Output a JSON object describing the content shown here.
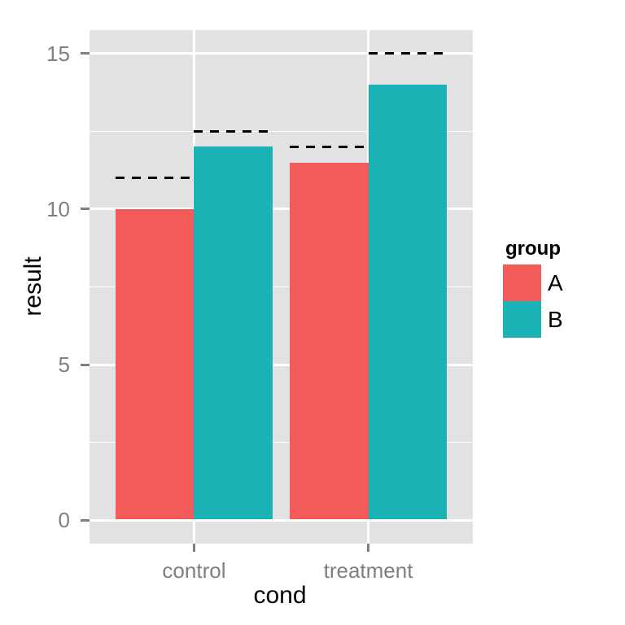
{
  "chart_data": {
    "type": "bar",
    "bar_layout": "dodged",
    "title": "",
    "xlabel": "cond",
    "ylabel": "result",
    "categories": [
      "control",
      "treatment"
    ],
    "series": [
      {
        "name": "A",
        "color": "#F25B5A",
        "bar_values": [
          10,
          11.5
        ],
        "dashed_line_values": [
          11,
          12
        ]
      },
      {
        "name": "B",
        "color": "#1AB3B5",
        "bar_values": [
          12,
          14
        ],
        "dashed_line_values": [
          12.5,
          15
        ]
      }
    ],
    "legend": {
      "title": "group",
      "position": "right",
      "entries": [
        "A",
        "B"
      ]
    },
    "y_axis": {
      "ticks": [
        0,
        5,
        10,
        15
      ],
      "minor_gridlines": [
        2.5,
        7.5,
        12.5
      ],
      "range_min": 0,
      "range_max": 15
    },
    "x_axis": {
      "ticks": [
        "control",
        "treatment"
      ]
    },
    "grid": "on",
    "styles": {
      "panel_bg": "#E2E2E2",
      "gridline_color": "#FFFFFF",
      "axis_text_color": "#7F7F7F",
      "axis_title_color": "#000000",
      "legend_text_color": "#000000",
      "dashed_line_color": "#000000",
      "background": "#FFFFFF"
    }
  }
}
